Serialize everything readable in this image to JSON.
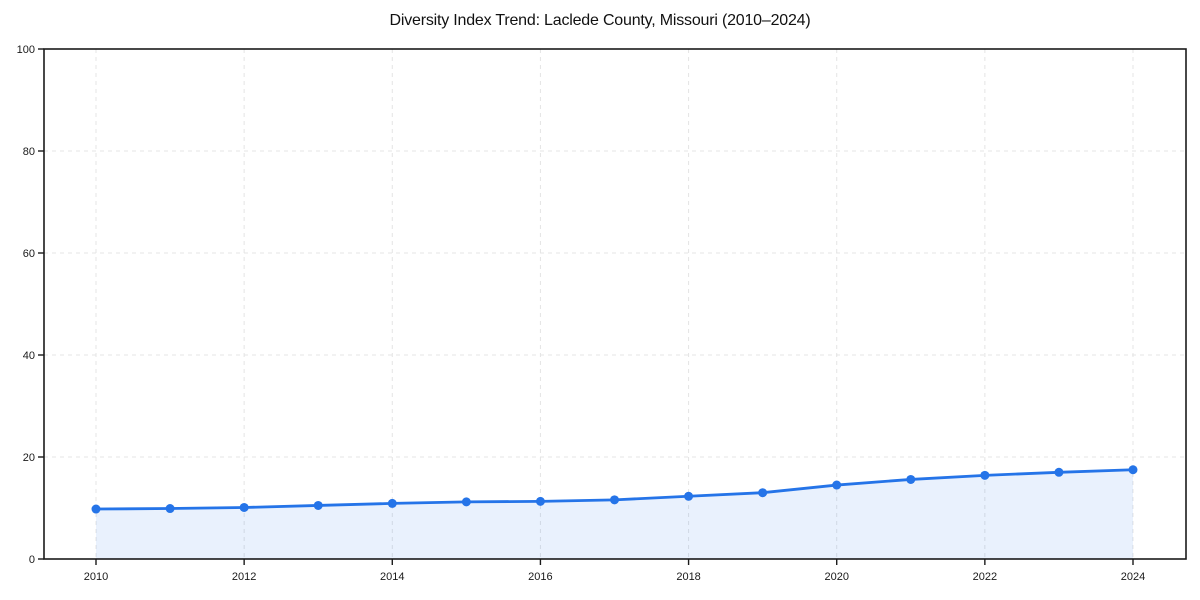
{
  "page": {
    "background": "#ffffff"
  },
  "chart_data": {
    "type": "area",
    "title": "Diversity Index Trend: Laclede County, Missouri (2010–2024)",
    "series_name": "Diversity Index",
    "x": [
      2010,
      2011,
      2012,
      2013,
      2014,
      2015,
      2016,
      2017,
      2018,
      2019,
      2020,
      2021,
      2022,
      2023,
      2024
    ],
    "values": [
      9.8,
      9.9,
      10.1,
      10.5,
      10.9,
      11.2,
      11.3,
      11.6,
      12.3,
      13.0,
      14.5,
      15.6,
      16.4,
      17.0,
      17.5
    ],
    "xlabel": "",
    "ylabel": "",
    "ylim": [
      0,
      100
    ],
    "yticks": [
      0,
      20,
      40,
      60,
      80,
      100
    ],
    "xticks": [
      2010,
      2012,
      2014,
      2016,
      2018,
      2020,
      2022,
      2024
    ],
    "grid": true,
    "grid_style": "dashed",
    "legend": "none",
    "markers": true,
    "colors": {
      "line": "#2574e8",
      "marker": "#2574e8",
      "fill": "rgba(37,116,232,0.10)",
      "grid": "#e4e4e4",
      "spine": "#1a1a1a",
      "tick": "#1a1a1a",
      "tick_label": "#1a1a1a",
      "title": "#111111",
      "background": "#ffffff"
    }
  }
}
